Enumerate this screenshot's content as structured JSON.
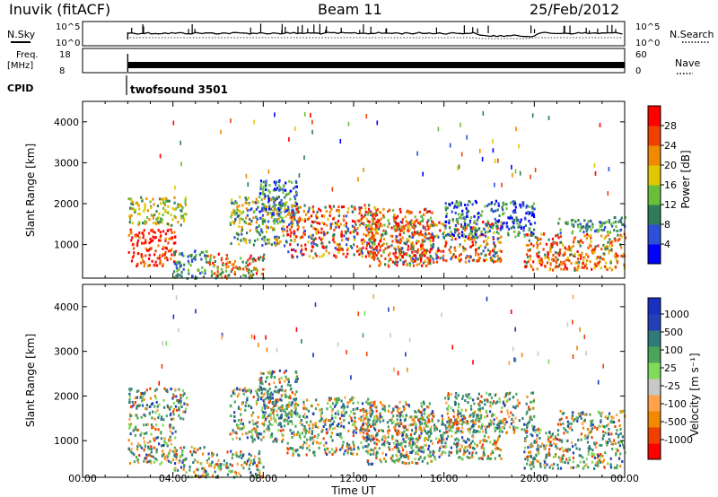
{
  "header": {
    "station": "Inuvik (fitACF)",
    "beam": "Beam 11",
    "date": "25/Feb/2012"
  },
  "strips": {
    "nsky_label": "N.Sky",
    "nsearch_label": "N.Search",
    "noise_ticks": [
      "10^5",
      "10^0"
    ],
    "freq_label": "Freq.",
    "freq_unit": "[MHz]",
    "freq_ticks": [
      "18",
      "8"
    ],
    "nave_label": "Nave",
    "nave_ticks": [
      "60",
      "0"
    ],
    "cpid_label": "CPID",
    "cpid_value": "twofsound 3501"
  },
  "colors": {
    "power": [
      "#0000ff",
      "#2e4fd8",
      "#2e7d5a",
      "#6abf3a",
      "#e0c800",
      "#f08a00",
      "#f04000",
      "#ff0000"
    ],
    "velocity": [
      "#ff0000",
      "#f04000",
      "#f08a00",
      "#ffa24a",
      "#c8c8c8",
      "#7fdc5a",
      "#4aa45a",
      "#2f7a7a",
      "#2440b8",
      "#1a30c0"
    ]
  },
  "chart_data": [
    {
      "type": "heatmap",
      "title": "",
      "ylabel": "Slant Range [km]",
      "xlabel": "",
      "x_range": [
        "00:00",
        "24:00"
      ],
      "ylim": [
        180,
        4500
      ],
      "y_ticks": [
        "4000",
        "3000",
        "2000",
        "1000"
      ],
      "colorbar_label": "Power [dB]",
      "colorbar_ticks": [
        "28",
        "24",
        "20",
        "16",
        "12",
        "8",
        "4"
      ],
      "colorbar_range": [
        0,
        32
      ]
    },
    {
      "type": "heatmap",
      "title": "",
      "ylabel": "Slant Range [km]",
      "xlabel": "Time UT",
      "x_ticks": [
        "00:00",
        "04:00",
        "08:00",
        "12:00",
        "16:00",
        "20:00",
        "00:00"
      ],
      "ylim": [
        180,
        4500
      ],
      "y_ticks": [
        "4000",
        "3000",
        "2000",
        "1000"
      ],
      "colorbar_label": "Velocity [m s⁻¹]",
      "colorbar_ticks": [
        "1000",
        "500",
        "100",
        "25",
        "-25",
        "-100",
        "-500",
        "-1000"
      ]
    }
  ]
}
